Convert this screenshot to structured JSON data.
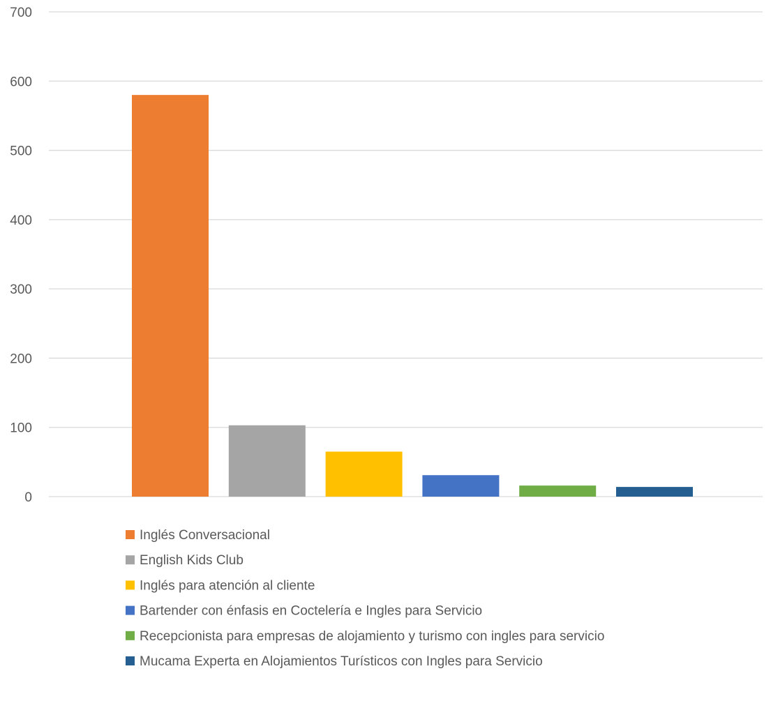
{
  "chart_data": {
    "type": "bar",
    "ylim": [
      0,
      700
    ],
    "yticks": [
      0,
      100,
      200,
      300,
      400,
      500,
      600,
      700
    ],
    "grid": true,
    "legend_position": "bottom",
    "series": [
      {
        "name": "Inglés Conversacional",
        "value": 580,
        "color": "#ED7D31"
      },
      {
        "name": "English Kids Club",
        "value": 103,
        "color": "#A5A5A5"
      },
      {
        "name": "Inglés para atención al cliente",
        "value": 65,
        "color": "#FFC000"
      },
      {
        "name": "Bartender con énfasis en Coctelería e Ingles para Servicio",
        "value": 31,
        "color": "#4472C4"
      },
      {
        "name": "Recepcionista para empresas de alojamiento y turismo con ingles para servicio",
        "value": 16,
        "color": "#70AD47"
      },
      {
        "name": "Mucama Experta en Alojamientos Turísticos con Ingles para Servicio",
        "value": 14,
        "color": "#255E91"
      }
    ]
  }
}
